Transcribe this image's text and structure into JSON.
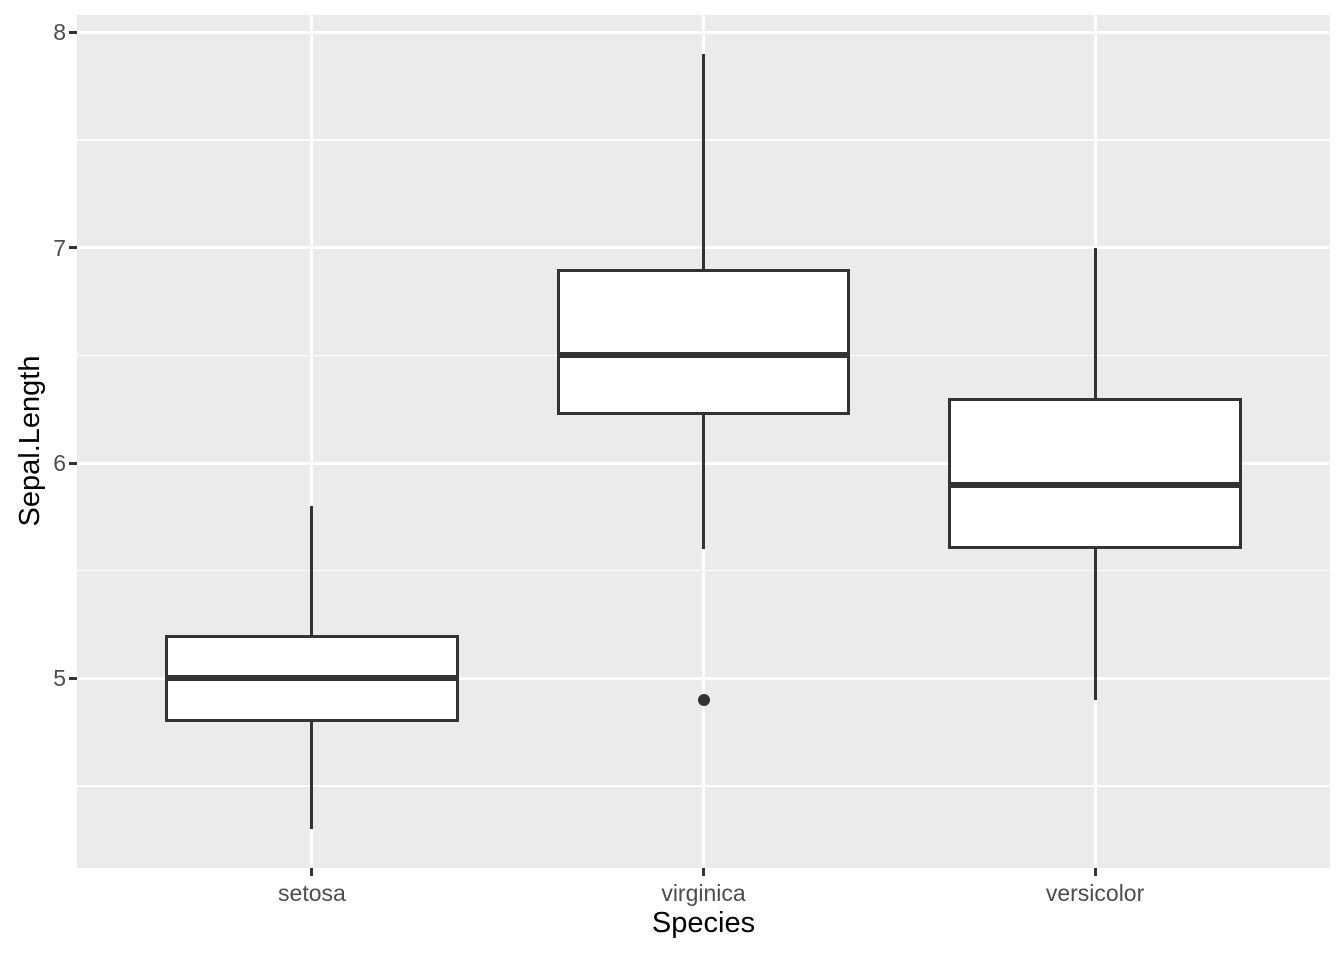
{
  "chart_data": {
    "type": "boxplot",
    "title": "",
    "xlabel": "Species",
    "ylabel": "Sepal.Length",
    "categories": [
      "setosa",
      "virginica",
      "versicolor"
    ],
    "series": [
      {
        "name": "setosa",
        "whisker_low": 4.3,
        "q1": 4.8,
        "median": 5.0,
        "q3": 5.2,
        "whisker_high": 5.8,
        "outliers": []
      },
      {
        "name": "virginica",
        "whisker_low": 5.6,
        "q1": 6.225,
        "median": 6.5,
        "q3": 6.9,
        "whisker_high": 7.9,
        "outliers": [
          4.9
        ]
      },
      {
        "name": "versicolor",
        "whisker_low": 4.9,
        "q1": 5.6,
        "median": 5.9,
        "q3": 6.3,
        "whisker_high": 7.0,
        "outliers": []
      }
    ],
    "y_ticks": [
      8,
      7,
      6,
      5
    ],
    "y_minor_ticks": [
      7.5,
      6.5,
      5.5,
      4.5
    ],
    "ylim": [
      4.12,
      8.08
    ],
    "box_width_fraction": 0.75,
    "grid": true,
    "legend": "none",
    "colors": {
      "panel_background": "#EBEBEB",
      "grid_major": "#FFFFFF",
      "grid_minor": "#FFFFFF",
      "box_border": "#333333",
      "box_fill": "#FFFFFF",
      "median": "#333333",
      "outlier": "#333333",
      "axis_text": "#4D4D4D",
      "axis_title": "#000000",
      "tick_mark": "#333333"
    }
  }
}
